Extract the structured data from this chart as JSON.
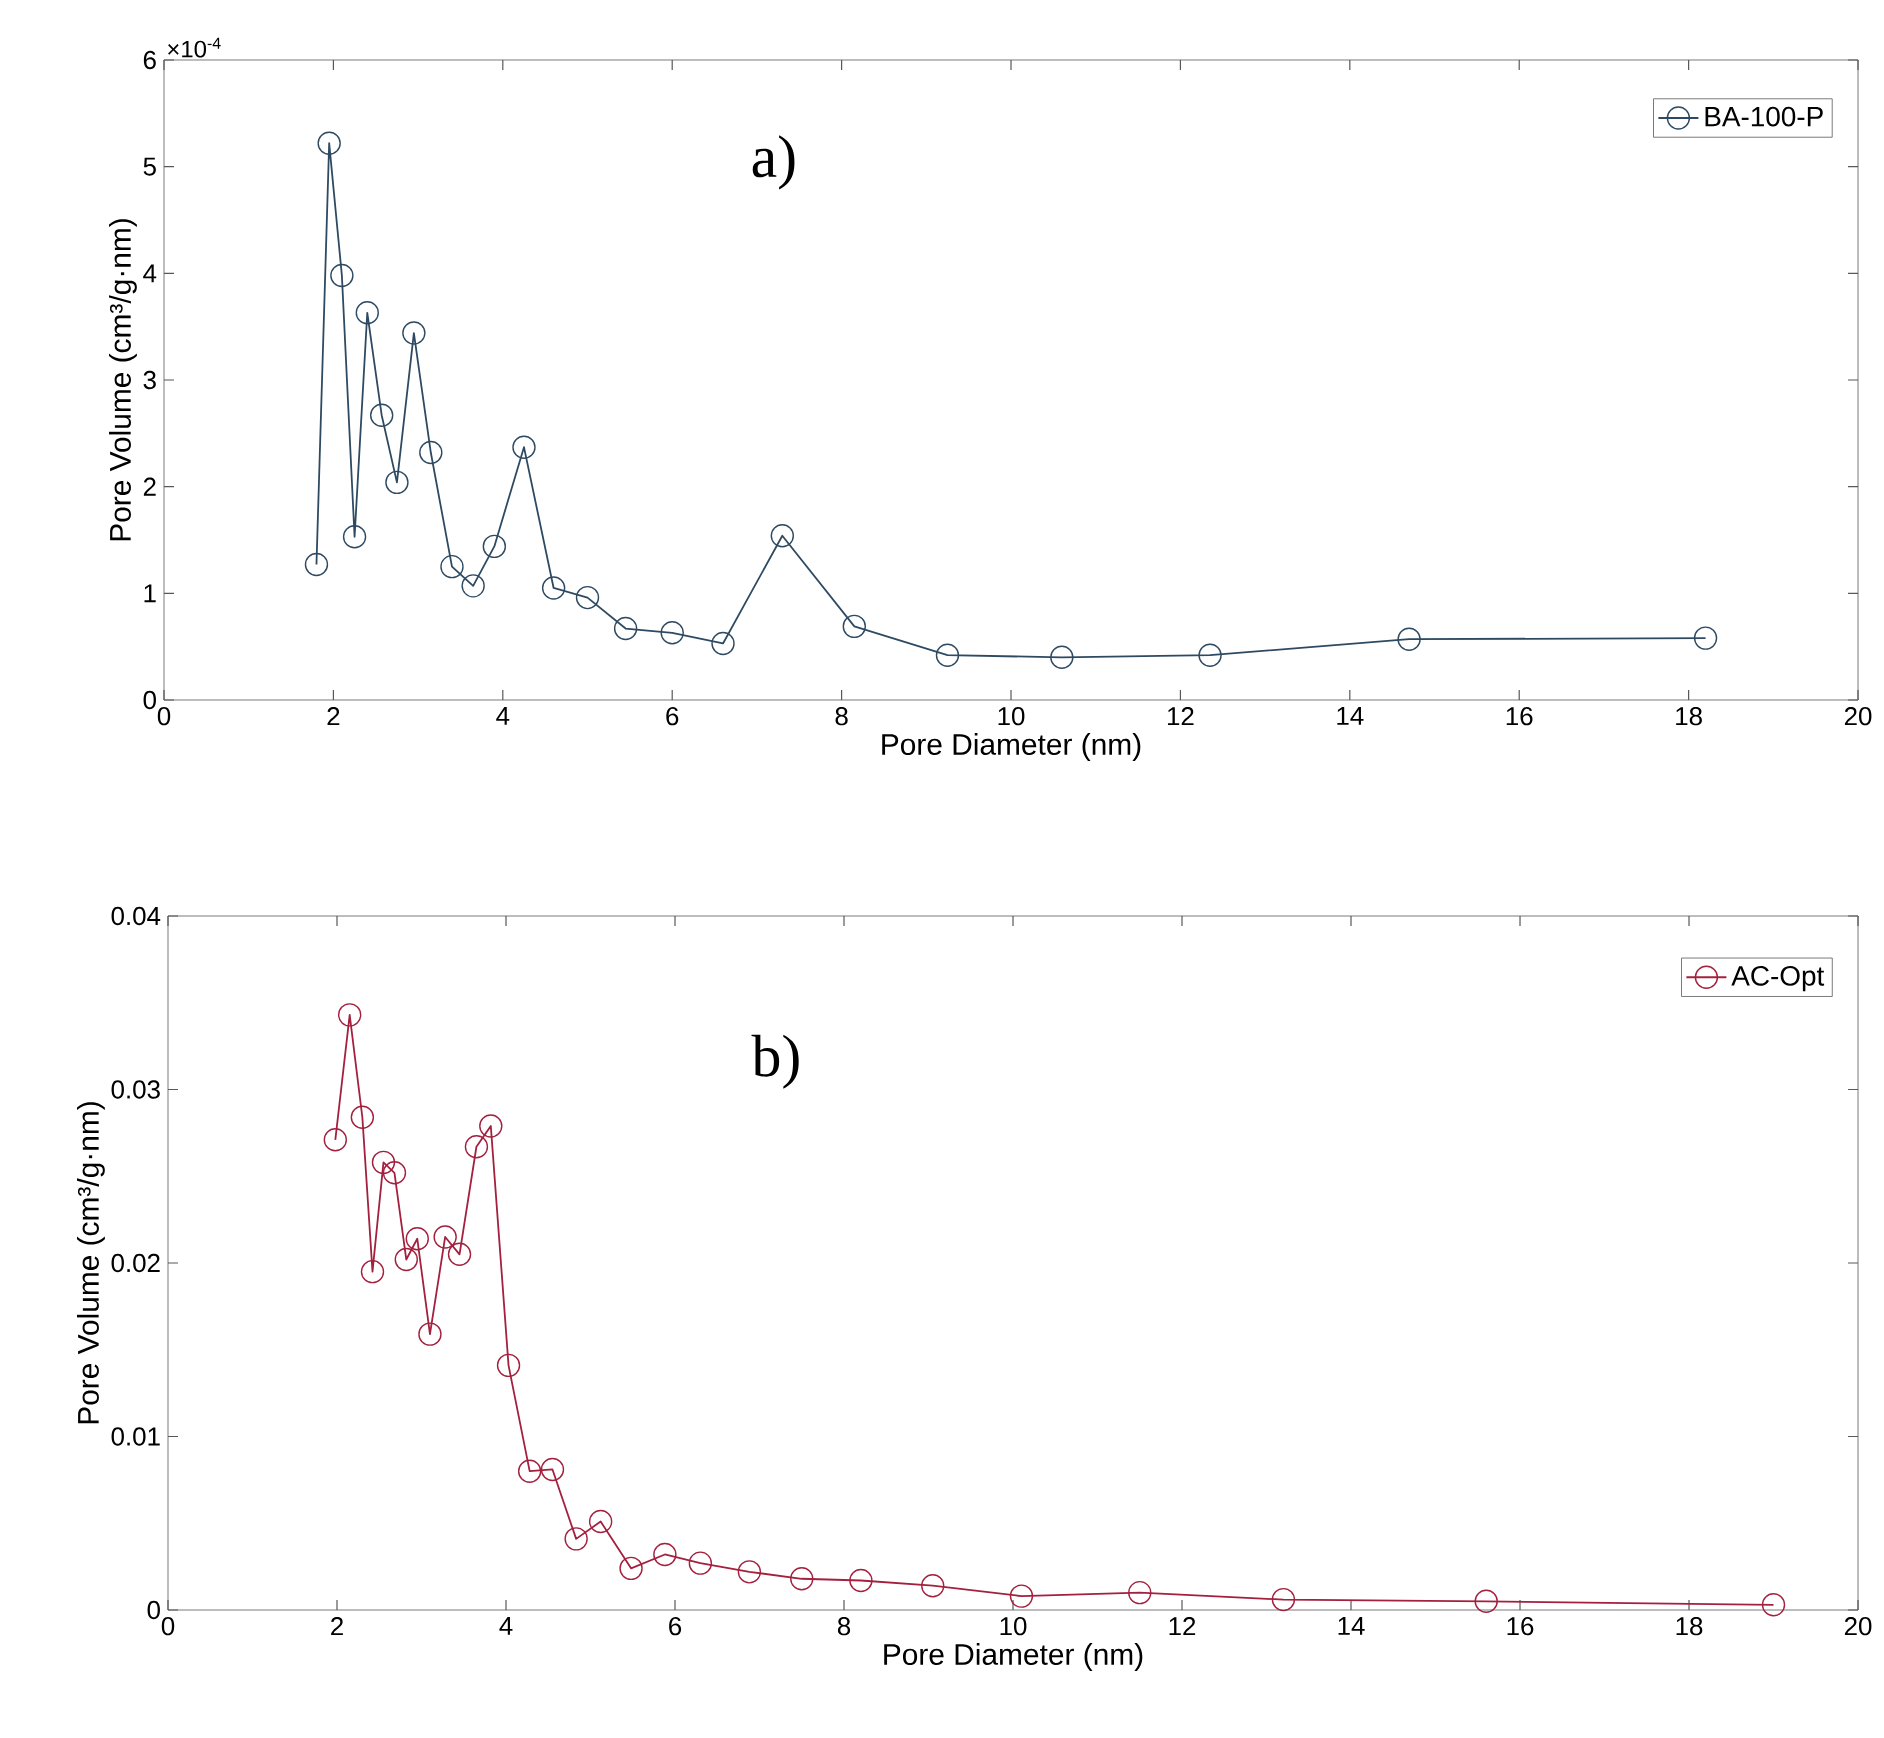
{
  "chart_data": [
    {
      "type": "line",
      "xlabel": "Pore Diameter (nm)",
      "ylabel": "Pore Volume (cm³/g·nm)",
      "annotations": [
        "a)",
        "×10$^{-4}$"
      ],
      "xlim": [
        0,
        20
      ],
      "xticks": [
        0,
        2,
        4,
        6,
        8,
        10,
        12,
        14,
        16,
        18,
        20
      ],
      "ylim": [
        0,
        6
      ],
      "yticks": [
        0,
        1,
        2,
        3,
        4,
        5,
        6
      ],
      "legend": "top right",
      "marker": "circle",
      "line_style": "solid",
      "grid": false,
      "series": [
        {
          "name": "BA-100-P",
          "color": "#2e4a62",
          "x": [
            1.8,
            1.95,
            2.1,
            2.25,
            2.4,
            2.57,
            2.75,
            2.95,
            3.15,
            3.4,
            3.65,
            3.9,
            4.25,
            4.6,
            5.0,
            5.45,
            6.0,
            6.6,
            7.3,
            8.15,
            9.25,
            10.6,
            12.35,
            14.7,
            18.2
          ],
          "values": [
            1.27,
            5.22,
            3.98,
            1.53,
            3.63,
            2.67,
            2.04,
            3.44,
            2.32,
            1.25,
            1.07,
            1.44,
            2.37,
            1.05,
            0.96,
            0.67,
            0.63,
            0.53,
            1.54,
            0.69,
            0.42,
            0.4,
            0.42,
            0.57,
            0.58
          ]
        }
      ]
    },
    {
      "type": "line",
      "xlabel": "Pore Diameter (nm)",
      "ylabel": "Pore Volume (cm³/g·nm)",
      "annotations": [
        "b)"
      ],
      "xlim": [
        0,
        20
      ],
      "xticks": [
        0,
        2,
        4,
        6,
        8,
        10,
        12,
        14,
        16,
        18,
        20
      ],
      "ylim": [
        0,
        0.04
      ],
      "yticks": [
        0,
        0.01,
        0.02,
        0.03,
        0.04
      ],
      "legend": "top right",
      "marker": "circle",
      "line_style": "solid",
      "grid": false,
      "series": [
        {
          "name": "AC-Opt",
          "color": "#a3203e",
          "x": [
            1.98,
            2.15,
            2.3,
            2.42,
            2.55,
            2.68,
            2.82,
            2.95,
            3.1,
            3.28,
            3.45,
            3.65,
            3.82,
            4.03,
            4.28,
            4.55,
            4.83,
            5.12,
            5.48,
            5.88,
            6.3,
            6.88,
            7.5,
            8.2,
            9.05,
            10.1,
            11.5,
            13.2,
            15.6,
            19.0
          ],
          "values": [
            0.0271,
            0.0343,
            0.0284,
            0.0195,
            0.0258,
            0.0252,
            0.0202,
            0.0214,
            0.0159,
            0.0215,
            0.0205,
            0.0267,
            0.0279,
            0.0141,
            0.008,
            0.0081,
            0.0041,
            0.0051,
            0.0024,
            0.0032,
            0.0027,
            0.0022,
            0.0018,
            0.0017,
            0.0014,
            0.0008,
            0.001,
            0.0006,
            0.0005,
            0.0003
          ]
        }
      ]
    }
  ]
}
